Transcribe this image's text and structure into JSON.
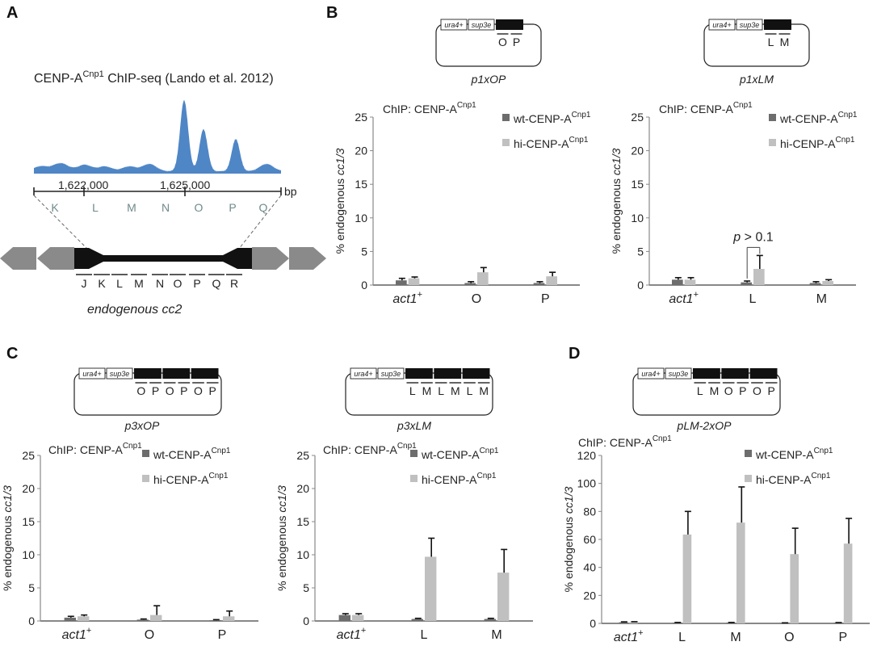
{
  "panels": {
    "a": "A",
    "b": "B",
    "c": "C",
    "d": "D"
  },
  "panelA": {
    "chipseq_title_pre": "CENP-A",
    "chipseq_title_sup": "Cnp1",
    "chipseq_title_post": " ChIP-seq (Lando et al. 2012)",
    "coord1": "1,622,000",
    "coord2": "1,625,000",
    "unit": "bp",
    "upper_segments": [
      "K",
      "L",
      "M",
      "N",
      "O",
      "P",
      "Q"
    ],
    "lower_segments": [
      "J",
      "K",
      "L",
      "M",
      "N",
      "O",
      "P",
      "Q",
      "R"
    ],
    "caption": "endogenous cc2",
    "signal_color": "#4f86c6"
  },
  "plasmid_labels": {
    "ura": "ura4+",
    "sup": "sup3e"
  },
  "plasmids": {
    "p1xOP": {
      "name": "p1xOP",
      "segments": [
        "O",
        "P"
      ]
    },
    "p1xLM": {
      "name": "p1xLM",
      "segments": [
        "L",
        "M"
      ]
    },
    "p3xOP": {
      "name": "p3xOP",
      "segments": [
        "O",
        "P",
        "O",
        "P",
        "O",
        "P"
      ]
    },
    "p3xLM": {
      "name": "p3xLM",
      "segments": [
        "L",
        "M",
        "L",
        "M",
        "L",
        "M"
      ]
    },
    "pLM2xOP": {
      "name": "pLM-2xOP",
      "segments": [
        "L",
        "M",
        "O",
        "P",
        "O",
        "P"
      ]
    }
  },
  "common": {
    "chip_pre": "ChIP: CENP-A",
    "chip_sup": "Cnp1",
    "legend_wt_pre": "wt-CENP-A",
    "legend_hi_pre": "hi-CENP-A",
    "legend_sup": "Cnp1",
    "ylabel_pre": "% endogenous ",
    "ylabel_ital": "cc1/3",
    "act_pre": "act1",
    "act_sup": "+",
    "color_wt": "#6d6d6d",
    "color_hi": "#c0c0c0",
    "pvalue_ital": "p",
    "pvalue_rest": " > 0.1"
  },
  "chart_data": [
    {
      "id": "B1",
      "type": "bar",
      "categories": [
        "act1+",
        "O",
        "P"
      ],
      "series": [
        {
          "name": "wt-CENP-ACnp1",
          "values": [
            0.7,
            0.3,
            0.3
          ],
          "errors": [
            0.3,
            0.2,
            0.2
          ]
        },
        {
          "name": "hi-CENP-ACnp1",
          "values": [
            1.0,
            1.9,
            1.3
          ],
          "errors": [
            0.2,
            0.7,
            0.6
          ]
        }
      ],
      "ylim": [
        0,
        25
      ],
      "yticks": [
        0,
        5,
        10,
        15,
        20,
        25
      ]
    },
    {
      "id": "B2",
      "type": "bar",
      "categories": [
        "act1+",
        "L",
        "M"
      ],
      "series": [
        {
          "name": "wt-CENP-ACnp1",
          "values": [
            0.8,
            0.4,
            0.3
          ],
          "errors": [
            0.3,
            0.2,
            0.2
          ]
        },
        {
          "name": "hi-CENP-ACnp1",
          "values": [
            0.8,
            2.4,
            0.6
          ],
          "errors": [
            0.3,
            2.0,
            0.2
          ]
        }
      ],
      "ylim": [
        0,
        25
      ],
      "yticks": [
        0,
        5,
        10,
        15,
        20,
        25
      ]
    },
    {
      "id": "C1",
      "type": "bar",
      "categories": [
        "act1+",
        "O",
        "P"
      ],
      "series": [
        {
          "name": "wt-CENP-ACnp1",
          "values": [
            0.5,
            0.2,
            0.1
          ],
          "errors": [
            0.2,
            0.1,
            0.1
          ]
        },
        {
          "name": "hi-CENP-ACnp1",
          "values": [
            0.7,
            0.9,
            0.7
          ],
          "errors": [
            0.2,
            1.4,
            0.8
          ]
        }
      ],
      "ylim": [
        0,
        25
      ],
      "yticks": [
        0,
        5,
        10,
        15,
        20,
        25
      ]
    },
    {
      "id": "C2",
      "type": "bar",
      "categories": [
        "act1+",
        "L",
        "M"
      ],
      "series": [
        {
          "name": "wt-CENP-ACnp1",
          "values": [
            0.9,
            0.3,
            0.3
          ],
          "errors": [
            0.2,
            0.1,
            0.1
          ]
        },
        {
          "name": "hi-CENP-ACnp1",
          "values": [
            0.9,
            9.7,
            7.3
          ],
          "errors": [
            0.2,
            2.8,
            3.5
          ]
        }
      ],
      "ylim": [
        0,
        25
      ],
      "yticks": [
        0,
        5,
        10,
        15,
        20,
        25
      ]
    },
    {
      "id": "D1",
      "type": "bar",
      "categories": [
        "act1+",
        "L",
        "M",
        "O",
        "P"
      ],
      "series": [
        {
          "name": "wt-CENP-ACnp1",
          "values": [
            0.8,
            0.5,
            0.5,
            0.3,
            0.4
          ],
          "errors": [
            0.3,
            0.2,
            0.2,
            0.1,
            0.2
          ]
        },
        {
          "name": "hi-CENP-ACnp1",
          "values": [
            0.9,
            63.5,
            72,
            49.5,
            57
          ],
          "errors": [
            0.3,
            16.5,
            25.5,
            18.5,
            18
          ]
        }
      ],
      "ylim": [
        0,
        120
      ],
      "yticks": [
        0,
        20,
        40,
        60,
        80,
        100,
        120
      ]
    }
  ]
}
